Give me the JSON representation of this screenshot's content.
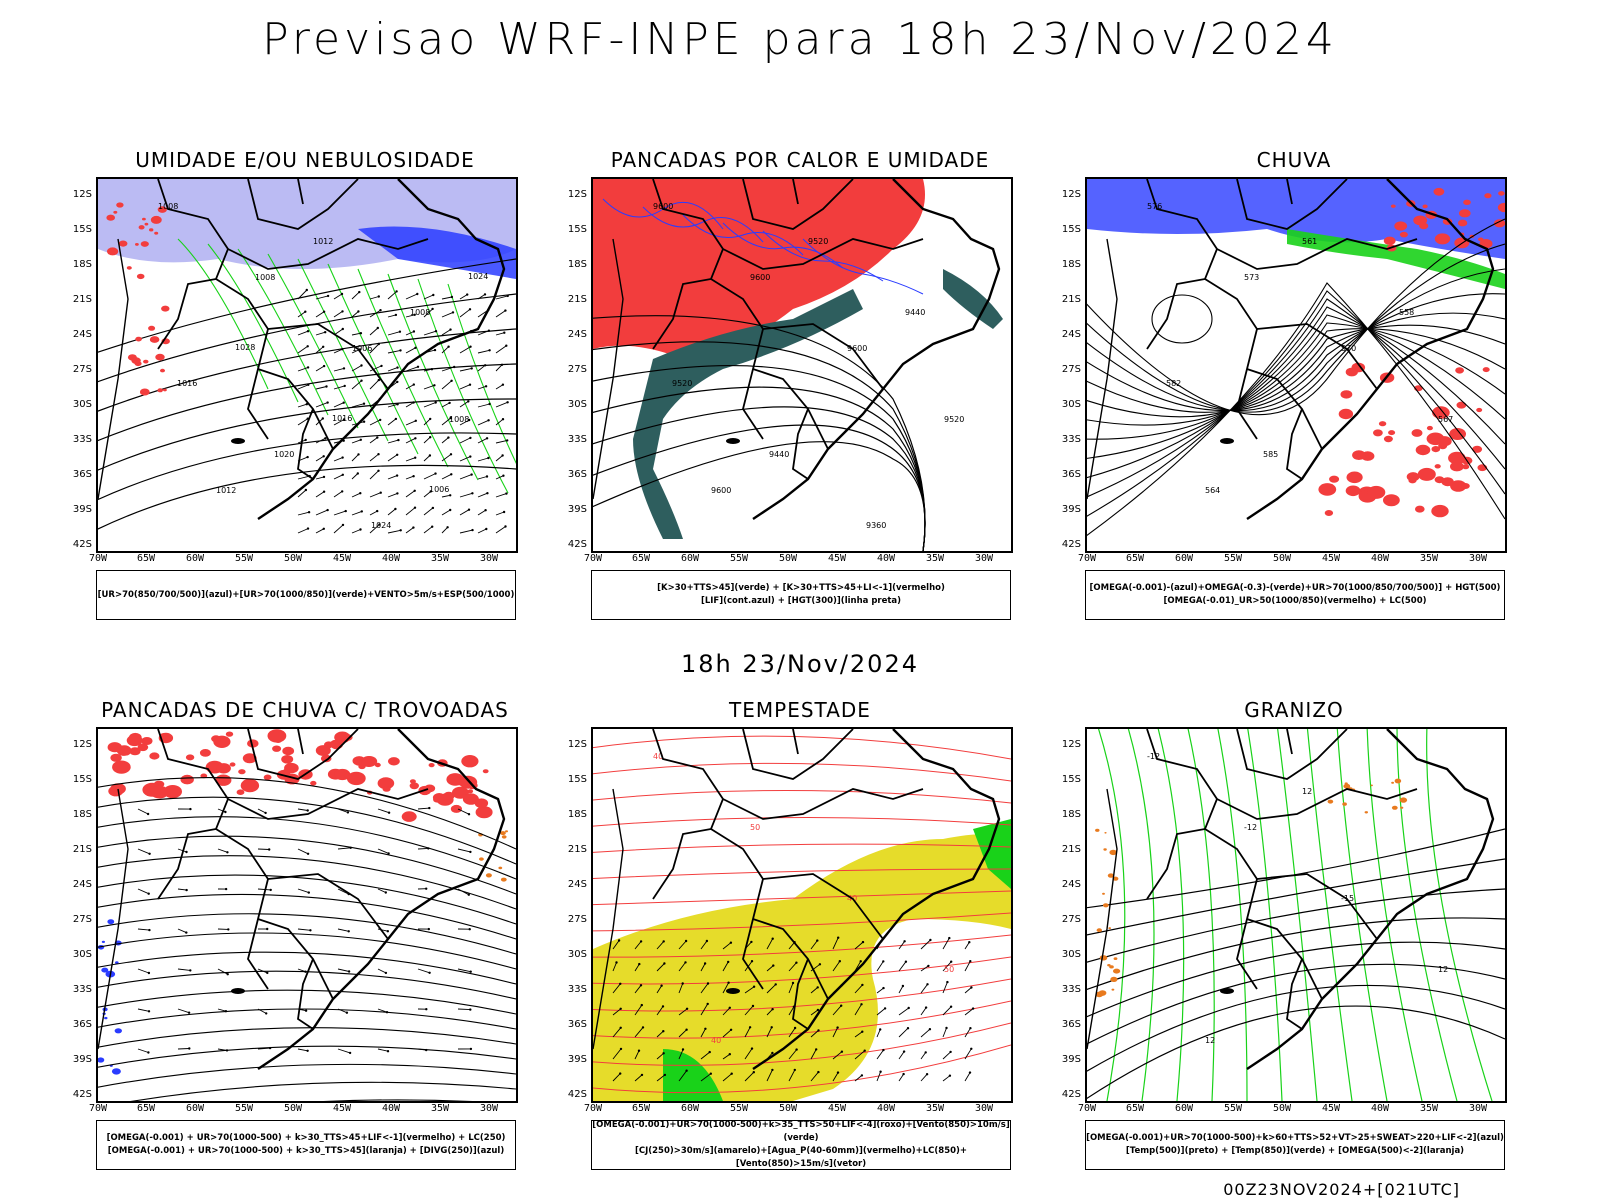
{
  "header": {
    "main_title": "Previsao WRF-INPE  para 18h 23/Nov/2024",
    "mid_title": "18h 23/Nov/2024",
    "footer": "00Z23NOV2024+[021UTC]"
  },
  "axes": {
    "lat_labels": [
      "12S",
      "15S",
      "18S",
      "21S",
      "24S",
      "27S",
      "30S",
      "33S",
      "36S",
      "39S",
      "42S"
    ],
    "lon_labels": [
      "70W",
      "65W",
      "60W",
      "55W",
      "50W",
      "45W",
      "40W",
      "35W",
      "30W"
    ]
  },
  "colors": {
    "red": "#f23d3d",
    "green": "#19d219",
    "blue": "#2a3cff",
    "lavender": "#b4b4f2",
    "darkteal": "#2e5e5e",
    "yellow": "#e6dc2a",
    "orange": "#e87a1e",
    "contour": "#000000"
  },
  "panels": [
    {
      "title": "UMIDADE E/OU NEBULOSIDADE",
      "legend": [
        "[UR>70(850/700/500)](azul)+[UR>70(1000/850)](verde)+VENTO>5m/s+ESP(500/1000)"
      ],
      "contour_labels": [
        "1008",
        "1008",
        "1006",
        "1008",
        "1012",
        "1012",
        "1008",
        "1016",
        "1020",
        "1024",
        "1024",
        "1028",
        "1016",
        "1006"
      ]
    },
    {
      "title": "PANCADAS POR CALOR E UMIDADE",
      "legend": [
        "[K>30+TTS>45](verde) + [K>30+TTS>45+LI<-1](vermelho)",
        "[LIF](cont.azul) + [HGT(300)](linha preta)"
      ],
      "contour_labels": [
        "9600",
        "9600",
        "9600",
        "9520",
        "9600",
        "9520",
        "9440",
        "9520",
        "9440",
        "9360"
      ]
    },
    {
      "title": "CHUVA",
      "legend": [
        "[OMEGA(-0.001)-(azul)+OMEGA(-0.3)-(verde)+UR>70(1000/850/700/500)] + HGT(500)",
        "[OMEGA(-0.01)_UR>50(1000/850)(vermelho) + LC(500)"
      ],
      "contour_labels": [
        "576",
        "573",
        "570",
        "567",
        "564",
        "561",
        "558",
        "582",
        "585"
      ]
    },
    {
      "title": "PANCADAS DE CHUVA C/ TROVOADAS",
      "legend": [
        "[OMEGA(-0.001) + UR>70(1000-500) + k>30_TTS>45+LIF<-1](vermelho) + LC(250)",
        "[OMEGA(-0.001) + UR>70(1000-500) + k>30_TTS>45](laranja) + [DIVG(250)](azul)"
      ],
      "contour_labels": []
    },
    {
      "title": "TEMPESTADE",
      "legend": [
        "[OMEGA(-0.001)+UR>70(1000-500)+k>35_TTS>50+LIF<-4](roxo)+[Vento(850)>10m/s](verde)",
        "[CJ(250)>30m/s](amarelo)+[Agua_P(40-60mm)](vermelho)+LC(850)+[Vento(850)>15m/s](vetor)"
      ],
      "contour_labels": [
        "40",
        "50",
        "40",
        "50",
        "40"
      ]
    },
    {
      "title": "GRANIZO",
      "legend": [
        "[OMEGA(-0.001)+UR>70(1000-500)+k>60+TTS>52+VT>25+SWEAT>220+LIF<-2](azul)",
        "[Temp(500)](preto) + [Temp(850)](verde) + [OMEGA(500)<-2](laranja)"
      ],
      "contour_labels": [
        "-12",
        "-12",
        "-15",
        "12",
        "12",
        "12"
      ]
    }
  ]
}
